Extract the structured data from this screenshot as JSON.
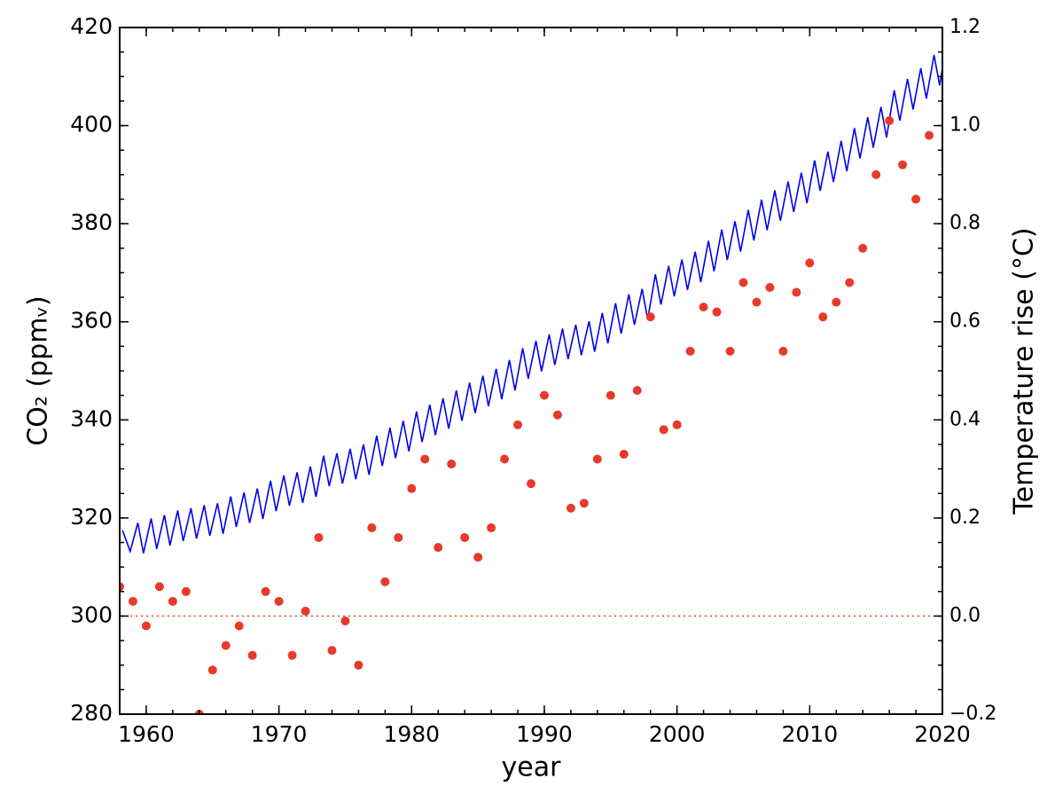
{
  "chart_data": {
    "type": "line",
    "xlabel": "year",
    "ylabel": "CO₂ (ppmᵥ)",
    "y2label": "Temperature rise (°C)",
    "xlim": [
      1958,
      2020
    ],
    "ylim": [
      280,
      420
    ],
    "y2lim": [
      -0.2,
      1.2
    ],
    "xticks": [
      1960,
      1970,
      1980,
      1990,
      2000,
      2010,
      2020
    ],
    "yticks": [
      280,
      300,
      320,
      340,
      360,
      380,
      400,
      420
    ],
    "y2ticks": [
      {
        "value": -0.2,
        "label": "−0.2"
      },
      {
        "value": 0,
        "label": "0.0"
      },
      0.2,
      0.4,
      0.6,
      0.8,
      {
        "value": 1,
        "label": "1.0"
      },
      1.2
    ],
    "minor_ticks": {
      "x": 2,
      "y": 5,
      "y2": 0.05
    },
    "ylabel_color": "#0000ee",
    "y2label_color": "#e8392a",
    "reference_line": {
      "axis": "y2",
      "value": 0,
      "color": "#e8392a",
      "style": "dotted"
    },
    "series": [
      {
        "type": "line",
        "axis": "y",
        "color": "#0000ee",
        "x": [
          1958.21,
          1958.79,
          1959.37,
          1959.79,
          1960.37,
          1960.79,
          1961.37,
          1961.79,
          1962.37,
          1962.79,
          1963.37,
          1963.79,
          1964.37,
          1964.79,
          1965.37,
          1965.79,
          1966.37,
          1966.79,
          1967.37,
          1967.79,
          1968.37,
          1968.79,
          1969.37,
          1969.79,
          1970.37,
          1970.79,
          1971.37,
          1971.79,
          1972.37,
          1972.79,
          1973.37,
          1973.79,
          1974.37,
          1974.79,
          1975.37,
          1975.79,
          1976.37,
          1976.79,
          1977.37,
          1977.79,
          1978.37,
          1978.79,
          1979.37,
          1979.79,
          1980.37,
          1980.79,
          1981.37,
          1981.79,
          1982.37,
          1982.79,
          1983.37,
          1983.79,
          1984.37,
          1984.79,
          1985.37,
          1985.79,
          1986.37,
          1986.79,
          1987.37,
          1987.79,
          1988.37,
          1988.79,
          1989.37,
          1989.79,
          1990.37,
          1990.79,
          1991.37,
          1991.79,
          1992.37,
          1992.79,
          1993.37,
          1993.79,
          1994.37,
          1994.79,
          1995.37,
          1995.79,
          1996.37,
          1996.79,
          1997.37,
          1997.79,
          1998.37,
          1998.79,
          1999.37,
          1999.79,
          2000.37,
          2000.79,
          2001.37,
          2001.79,
          2002.37,
          2002.79,
          2003.37,
          2003.79,
          2004.37,
          2004.79,
          2005.37,
          2005.79,
          2006.37,
          2006.79,
          2007.37,
          2007.79,
          2008.37,
          2008.79,
          2009.37,
          2009.79,
          2010.37,
          2010.79,
          2011.37,
          2011.79,
          2012.37,
          2012.79,
          2013.37,
          2013.79,
          2014.37,
          2014.79,
          2015.37,
          2015.79,
          2016.37,
          2016.79,
          2017.37,
          2017.79,
          2018.37,
          2018.79,
          2019.37,
          2019.79,
          2019.99
        ],
        "values": [
          317.5,
          313.2,
          319.0,
          312.8,
          319.9,
          313.7,
          320.6,
          314.4,
          321.5,
          315.3,
          322.0,
          315.8,
          322.6,
          316.4,
          323.0,
          316.8,
          324.4,
          318.2,
          325.2,
          319.0,
          326.0,
          319.8,
          327.6,
          321.4,
          328.7,
          322.5,
          329.3,
          323.1,
          330.5,
          324.3,
          332.7,
          326.5,
          333.2,
          327.0,
          334.1,
          327.9,
          335.0,
          328.8,
          336.8,
          330.6,
          338.4,
          332.2,
          339.8,
          333.6,
          341.7,
          335.5,
          343.1,
          336.9,
          344.4,
          338.2,
          346.0,
          339.8,
          347.6,
          341.4,
          349.0,
          342.8,
          350.4,
          344.2,
          352.2,
          346.0,
          354.6,
          348.4,
          356.1,
          349.9,
          357.4,
          351.2,
          358.6,
          352.4,
          359.4,
          353.2,
          360.1,
          353.9,
          361.8,
          355.6,
          363.8,
          357.6,
          365.6,
          359.4,
          366.7,
          360.5,
          369.7,
          363.5,
          371.4,
          365.2,
          372.7,
          366.5,
          374.3,
          368.1,
          376.5,
          370.3,
          378.8,
          372.6,
          380.5,
          374.3,
          382.8,
          376.6,
          384.9,
          378.7,
          386.8,
          380.6,
          388.6,
          382.4,
          390.4,
          384.2,
          392.9,
          386.7,
          394.7,
          388.5,
          396.9,
          390.7,
          399.5,
          393.3,
          401.7,
          395.5,
          403.8,
          397.6,
          407.2,
          401.0,
          409.5,
          403.3,
          411.7,
          405.5,
          414.4,
          408.2,
          411.5
        ]
      },
      {
        "type": "scatter",
        "axis": "y2",
        "color": "#e8392a",
        "x": [
          1958,
          1959,
          1960,
          1961,
          1962,
          1963,
          1964,
          1965,
          1966,
          1967,
          1968,
          1969,
          1970,
          1971,
          1972,
          1973,
          1974,
          1975,
          1976,
          1977,
          1978,
          1979,
          1980,
          1981,
          1982,
          1983,
          1984,
          1985,
          1986,
          1987,
          1988,
          1989,
          1990,
          1991,
          1992,
          1993,
          1994,
          1995,
          1996,
          1997,
          1998,
          1999,
          2000,
          2001,
          2002,
          2003,
          2004,
          2005,
          2006,
          2007,
          2008,
          2009,
          2010,
          2011,
          2012,
          2013,
          2014,
          2015,
          2016,
          2017,
          2018,
          2019
        ],
        "values": [
          0.06,
          0.03,
          -0.02,
          0.06,
          0.03,
          0.05,
          -0.2,
          -0.11,
          -0.06,
          -0.02,
          -0.08,
          0.05,
          0.03,
          -0.08,
          0.01,
          0.16,
          -0.07,
          -0.01,
          -0.1,
          0.18,
          0.07,
          0.16,
          0.26,
          0.32,
          0.14,
          0.31,
          0.16,
          0.12,
          0.18,
          0.32,
          0.39,
          0.27,
          0.45,
          0.41,
          0.22,
          0.23,
          0.32,
          0.45,
          0.33,
          0.46,
          0.61,
          0.38,
          0.39,
          0.54,
          0.63,
          0.62,
          0.54,
          0.68,
          0.64,
          0.67,
          0.54,
          0.66,
          0.72,
          0.61,
          0.64,
          0.68,
          0.75,
          0.9,
          1.01,
          0.92,
          0.85,
          0.98
        ]
      }
    ]
  }
}
